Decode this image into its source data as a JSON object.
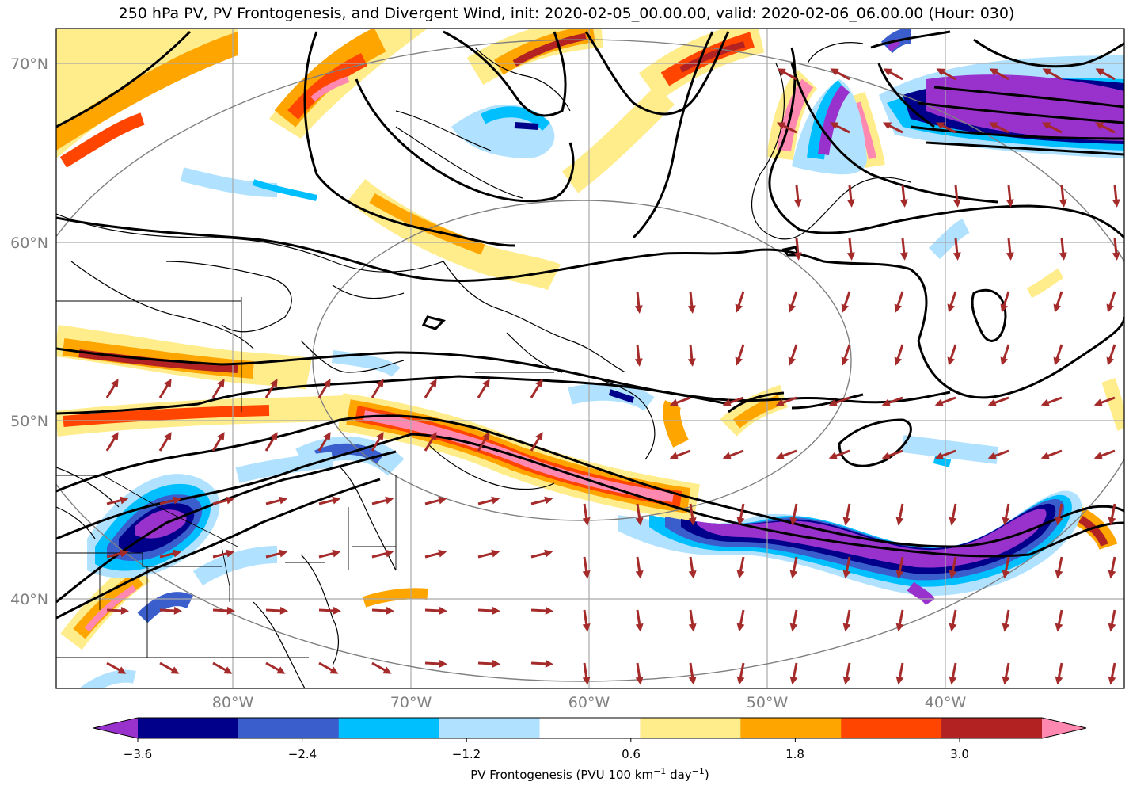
{
  "title": "250 hPa PV, PV Frontogenesis, and Divergent Wind, init: 2020-02-05_00.00.00, valid: 2020-02-06_06.00.00 (Hour: 030)",
  "axes": {
    "lat_labels": [
      "70°N",
      "60°N",
      "50°N",
      "40°N"
    ],
    "lon_labels": [
      "80°W",
      "70°W",
      "60°W",
      "50°W",
      "40°W"
    ]
  },
  "colorbar": {
    "label": "PV Frontogenesis (PVU 100 km",
    "label_sup": "−1",
    "label_mid": " day",
    "label_sup2": "−1",
    "label_end": ")",
    "tick_labels": [
      "−3.6",
      "−2.4",
      "−1.2",
      "0.6",
      "1.8",
      "3.0"
    ],
    "colors": [
      "#9932cc",
      "#00008b",
      "#3a5fcd",
      "#00bfff",
      "#b0e2ff",
      "#ffffff",
      "#ffec8b",
      "#ffa500",
      "#ff4500",
      "#b22222",
      "#ff88b0"
    ]
  },
  "colors": {
    "wind_arrow": "#a52a2a",
    "pv_contour": "#000000",
    "coastline": "#000000",
    "gridline": "#a9a9a9",
    "ring": "#808080"
  }
}
